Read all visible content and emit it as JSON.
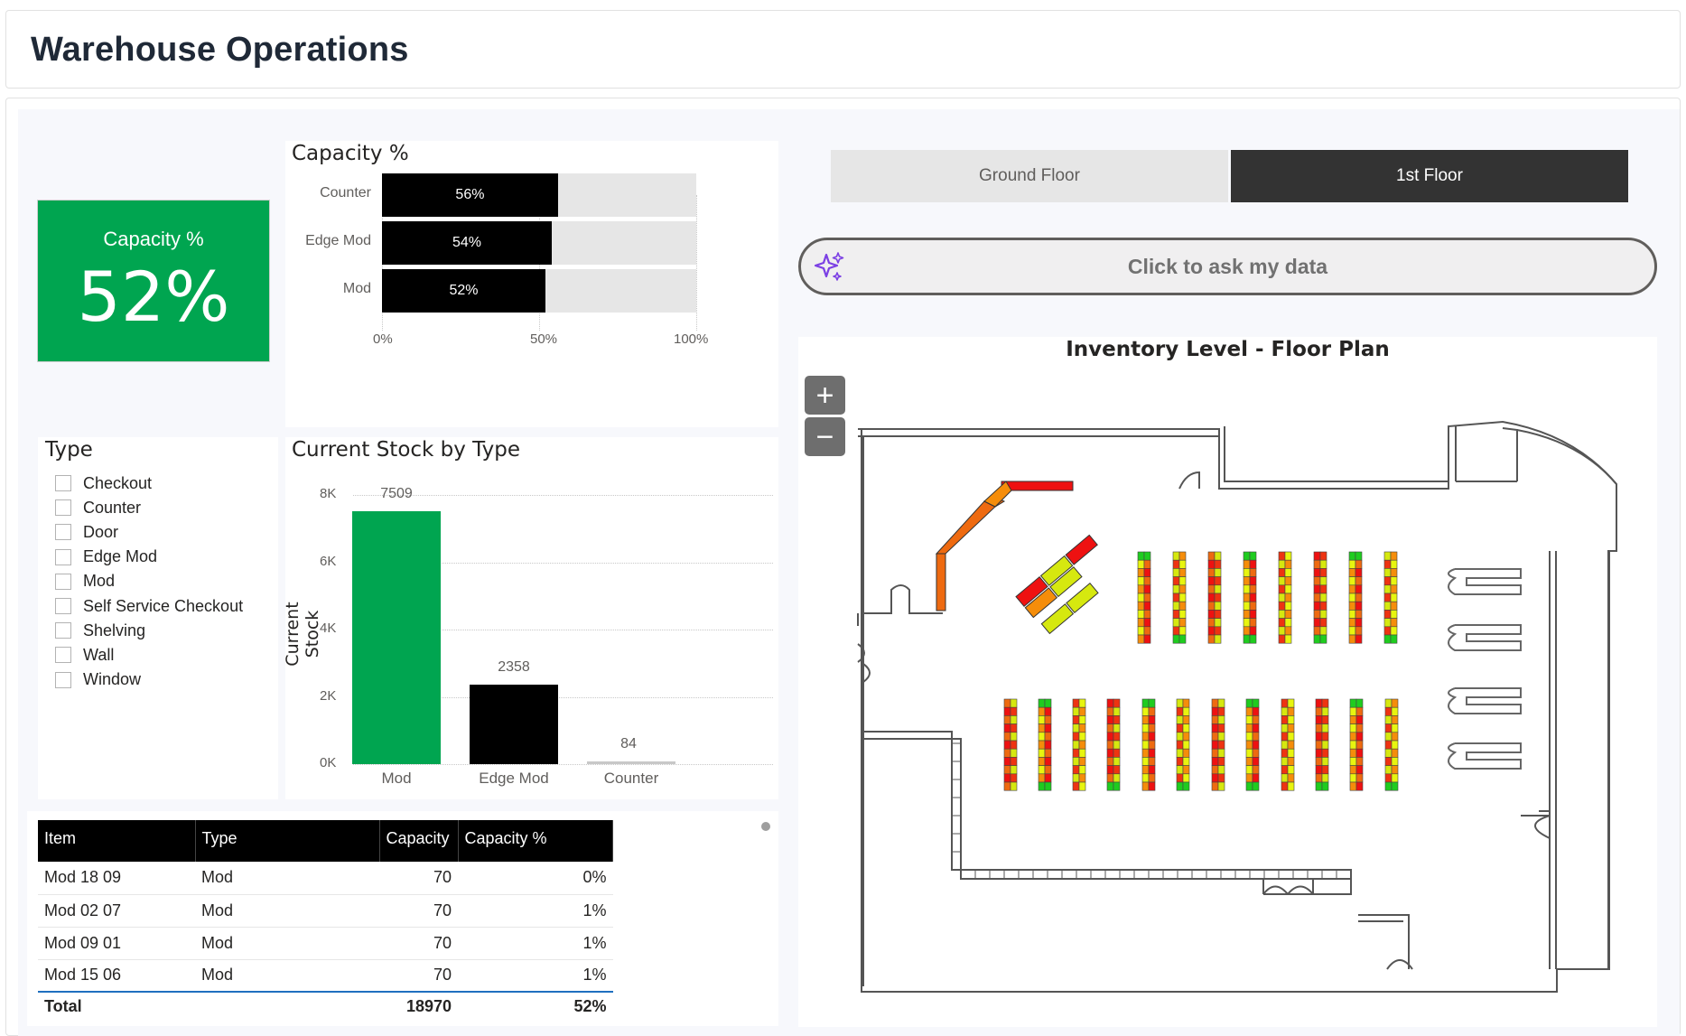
{
  "header": {
    "title": "Warehouse Operations"
  },
  "kpi": {
    "label": "Capacity %",
    "value": "52%",
    "color": "#00a550"
  },
  "capacity_chart": {
    "title": "Capacity %",
    "ticks": [
      "0%",
      "50%",
      "100%"
    ]
  },
  "stock_chart": {
    "title": "Current Stock by Type",
    "ylabel": "Current Stock",
    "yticks": [
      "8K",
      "6K",
      "4K",
      "2K",
      "0K"
    ]
  },
  "slicer": {
    "title": "Type",
    "items": [
      "Checkout",
      "Counter",
      "Door",
      "Edge Mod",
      "Mod",
      "Self Service Checkout",
      "Shelving",
      "Wall",
      "Window"
    ]
  },
  "table": {
    "headers": [
      "Item",
      "Type",
      "Capacity",
      "Capacity %"
    ],
    "rows": [
      [
        "Mod 18 09",
        "Mod",
        "70",
        "0%"
      ],
      [
        "Mod 02 07",
        "Mod",
        "70",
        "1%"
      ],
      [
        "Mod 09 01",
        "Mod",
        "70",
        "1%"
      ],
      [
        "Mod 15 06",
        "Mod",
        "70",
        "1%"
      ]
    ],
    "total": [
      "Total",
      "",
      "18970",
      "52%"
    ]
  },
  "floors": {
    "ground": "Ground Floor",
    "first": "1st Floor",
    "selected": "1st Floor"
  },
  "ask": {
    "label": "Click to ask my data"
  },
  "floorplan": {
    "title": "Inventory Level - Floor Plan",
    "zoom_in": "+",
    "zoom_out": "−"
  },
  "chart_data": [
    {
      "type": "bar",
      "orientation": "horizontal",
      "title": "Capacity %",
      "categories": [
        "Counter",
        "Edge Mod",
        "Mod"
      ],
      "values": [
        56,
        54,
        52
      ],
      "labels": [
        "56%",
        "54%",
        "52%"
      ],
      "xlim": [
        0,
        100
      ],
      "xlabel": "",
      "ylabel": ""
    },
    {
      "type": "bar",
      "title": "Current Stock by Type",
      "categories": [
        "Mod",
        "Edge Mod",
        "Counter"
      ],
      "values": [
        7509,
        2358,
        84
      ],
      "colors": [
        "#00a550",
        "#000000",
        "#c8c8c8"
      ],
      "ylabel": "Current Stock",
      "xlabel": "",
      "ylim": [
        0,
        8000
      ]
    }
  ]
}
